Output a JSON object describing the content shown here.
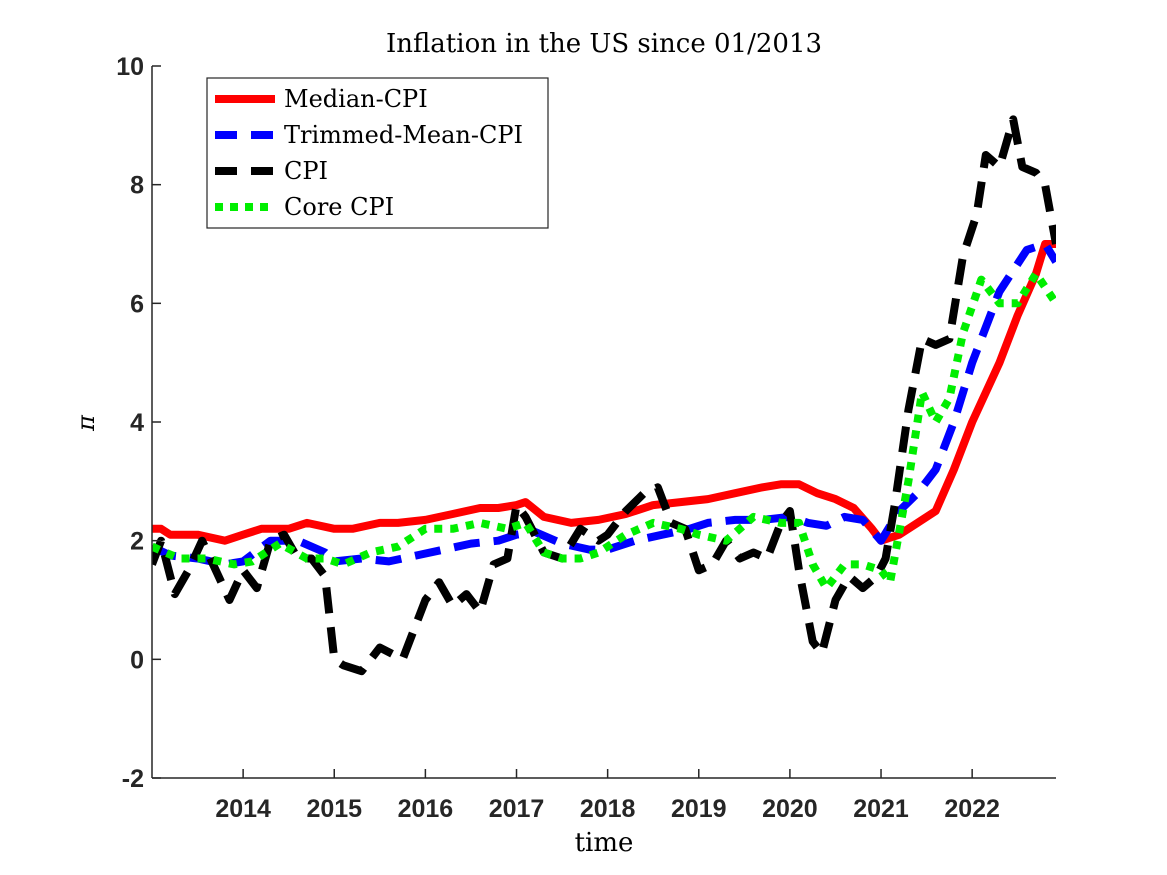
{
  "chart_data": {
    "type": "line",
    "title": "Inflation in the US since 01/2013",
    "xlabel": "time",
    "ylabel": "π",
    "xlim": [
      2013.0,
      2022.92
    ],
    "ylim": [
      -2,
      10
    ],
    "yticks": [
      -2,
      0,
      2,
      4,
      6,
      8,
      10
    ],
    "xticks": [
      2014,
      2015,
      2016,
      2017,
      2018,
      2019,
      2020,
      2021,
      2022
    ],
    "grid": false,
    "legend_position": "top-left",
    "series": [
      {
        "name": "Median-CPI",
        "color": "#ff0000",
        "dash": "solid",
        "x": [
          2013.0,
          2013.1,
          2013.2,
          2013.5,
          2013.8,
          2014.0,
          2014.2,
          2014.5,
          2014.7,
          2015.0,
          2015.2,
          2015.5,
          2015.7,
          2016.0,
          2016.3,
          2016.6,
          2016.8,
          2017.0,
          2017.1,
          2017.3,
          2017.6,
          2017.9,
          2018.2,
          2018.5,
          2018.8,
          2019.1,
          2019.4,
          2019.7,
          2019.9,
          2020.1,
          2020.3,
          2020.5,
          2020.7,
          2020.9,
          2021.0,
          2021.2,
          2021.4,
          2021.6,
          2021.8,
          2022.0,
          2022.3,
          2022.5,
          2022.7,
          2022.8,
          2022.92
        ],
        "y": [
          2.2,
          2.2,
          2.1,
          2.1,
          2.0,
          2.1,
          2.2,
          2.2,
          2.3,
          2.2,
          2.2,
          2.3,
          2.3,
          2.35,
          2.45,
          2.55,
          2.55,
          2.6,
          2.65,
          2.4,
          2.3,
          2.35,
          2.45,
          2.6,
          2.65,
          2.7,
          2.8,
          2.9,
          2.95,
          2.95,
          2.8,
          2.7,
          2.55,
          2.2,
          2.0,
          2.1,
          2.3,
          2.5,
          3.2,
          4.0,
          5.0,
          5.8,
          6.5,
          7.0,
          7.0
        ]
      },
      {
        "name": "Trimmed-Mean-CPI",
        "color": "#0000ff",
        "dash": "dashed",
        "x": [
          2013.0,
          2013.2,
          2013.5,
          2013.8,
          2014.0,
          2014.3,
          2014.6,
          2014.9,
          2015.0,
          2015.3,
          2015.6,
          2015.9,
          2016.2,
          2016.5,
          2016.8,
          2017.0,
          2017.2,
          2017.5,
          2017.8,
          2018.0,
          2018.3,
          2018.6,
          2018.9,
          2019.1,
          2019.4,
          2019.7,
          2020.0,
          2020.2,
          2020.4,
          2020.6,
          2020.8,
          2021.0,
          2021.2,
          2021.4,
          2021.6,
          2021.8,
          2022.0,
          2022.3,
          2022.6,
          2022.8,
          2022.92
        ],
        "y": [
          1.9,
          1.75,
          1.7,
          1.6,
          1.65,
          2.0,
          2.0,
          1.8,
          1.65,
          1.7,
          1.65,
          1.75,
          1.85,
          1.95,
          2.0,
          2.1,
          2.15,
          1.95,
          1.85,
          1.85,
          2.0,
          2.1,
          2.2,
          2.3,
          2.35,
          2.35,
          2.4,
          2.3,
          2.25,
          2.4,
          2.35,
          2.0,
          2.5,
          2.8,
          3.2,
          4.0,
          5.0,
          6.2,
          6.9,
          7.0,
          6.7
        ]
      },
      {
        "name": "CPI",
        "color": "#000000",
        "dash": "dashed",
        "x": [
          2013.0,
          2013.1,
          2013.25,
          2013.4,
          2013.55,
          2013.7,
          2013.85,
          2014.0,
          2014.15,
          2014.3,
          2014.45,
          2014.6,
          2014.75,
          2014.9,
          2015.0,
          2015.1,
          2015.3,
          2015.5,
          2015.75,
          2016.0,
          2016.15,
          2016.3,
          2016.45,
          2016.6,
          2016.75,
          2016.9,
          2017.0,
          2017.1,
          2017.3,
          2017.5,
          2017.7,
          2017.9,
          2018.0,
          2018.2,
          2018.4,
          2018.55,
          2018.7,
          2018.85,
          2019.0,
          2019.15,
          2019.3,
          2019.45,
          2019.6,
          2019.75,
          2019.9,
          2020.0,
          2020.1,
          2020.25,
          2020.35,
          2020.5,
          2020.65,
          2020.8,
          2020.95,
          2021.05,
          2021.15,
          2021.3,
          2021.45,
          2021.6,
          2021.75,
          2021.9,
          2022.05,
          2022.15,
          2022.3,
          2022.45,
          2022.55,
          2022.7,
          2022.8,
          2022.92
        ],
        "y": [
          1.6,
          2.0,
          1.1,
          1.5,
          2.0,
          1.5,
          1.0,
          1.5,
          1.2,
          2.0,
          2.1,
          1.7,
          1.7,
          1.4,
          0.0,
          -0.1,
          -0.2,
          0.2,
          0.0,
          1.0,
          1.3,
          0.9,
          1.1,
          0.8,
          1.6,
          1.7,
          2.6,
          2.4,
          1.8,
          1.7,
          2.2,
          2.0,
          2.1,
          2.5,
          2.8,
          2.9,
          2.3,
          2.2,
          1.5,
          1.6,
          2.0,
          1.7,
          1.8,
          1.7,
          2.3,
          2.5,
          1.5,
          0.3,
          0.1,
          1.0,
          1.4,
          1.2,
          1.4,
          1.7,
          2.6,
          4.2,
          5.4,
          5.3,
          5.4,
          6.8,
          7.5,
          8.5,
          8.3,
          9.1,
          8.3,
          8.2,
          8.0,
          7.0
        ]
      },
      {
        "name": "Core CPI",
        "color": "#00ee00",
        "dash": "dotted",
        "x": [
          2013.0,
          2013.3,
          2013.6,
          2013.9,
          2014.1,
          2014.4,
          2014.7,
          2014.9,
          2015.1,
          2015.4,
          2015.7,
          2016.0,
          2016.3,
          2016.6,
          2016.9,
          2017.1,
          2017.3,
          2017.5,
          2017.7,
          2017.9,
          2018.2,
          2018.5,
          2018.8,
          2019.0,
          2019.3,
          2019.6,
          2019.9,
          2020.1,
          2020.25,
          2020.4,
          2020.6,
          2020.8,
          2021.0,
          2021.1,
          2021.3,
          2021.45,
          2021.6,
          2021.75,
          2021.9,
          2022.1,
          2022.3,
          2022.5,
          2022.7,
          2022.92
        ],
        "y": [
          1.9,
          1.7,
          1.7,
          1.6,
          1.65,
          1.95,
          1.7,
          1.7,
          1.6,
          1.8,
          1.9,
          2.2,
          2.2,
          2.3,
          2.2,
          2.3,
          1.8,
          1.7,
          1.7,
          1.8,
          2.1,
          2.3,
          2.2,
          2.1,
          2.0,
          2.4,
          2.3,
          2.3,
          1.6,
          1.2,
          1.6,
          1.6,
          1.5,
          1.3,
          3.0,
          4.5,
          4.0,
          4.4,
          5.5,
          6.4,
          6.0,
          6.0,
          6.5,
          6.0
        ]
      }
    ]
  }
}
